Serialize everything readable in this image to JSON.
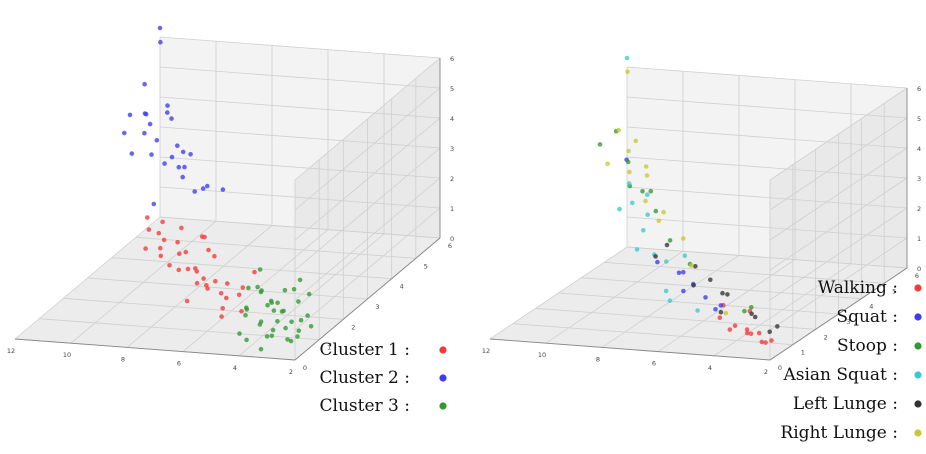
{
  "colors": {
    "red": "#f23a3a",
    "blue": "#3c3cf0",
    "green": "#2f9a2f",
    "cyan": "#3cc8d0",
    "dark": "#333333",
    "yellow": "#c8c832",
    "pane_left": "#f3f3f3",
    "pane_right": "#e9e9e9",
    "pane_floor": "#ececec",
    "grid": "#cfcfcf"
  },
  "chart_data": [
    {
      "type": "scatter",
      "projection": "3d",
      "xlim": [
        2,
        12
      ],
      "ylim": [
        0,
        6
      ],
      "zlim": [
        0,
        6
      ],
      "x_ticks": [
        "2",
        "4",
        "6",
        "8",
        "10",
        "12"
      ],
      "y_ticks": [
        "0",
        "1",
        "2",
        "3",
        "4",
        "5",
        "6"
      ],
      "z_ticks": [
        "0",
        "1",
        "2",
        "3",
        "4",
        "5",
        "6"
      ],
      "legend": [
        {
          "label": "Cluster 1 :",
          "color": "#f23a3a"
        },
        {
          "label": "Cluster 2 :",
          "color": "#3c3cf0"
        },
        {
          "label": "Cluster 3 :",
          "color": "#2f9a2f"
        }
      ],
      "series": [
        {
          "name": "Cluster 1 :",
          "color": "#f23a3a",
          "points": [
            [
              4.6,
              0.8,
              0.9
            ],
            [
              5.1,
              0.6,
              1.1
            ],
            [
              5.5,
              1.0,
              1.3
            ],
            [
              5.9,
              0.9,
              1.5
            ],
            [
              6.3,
              1.2,
              1.6
            ],
            [
              6.8,
              1.5,
              1.6
            ],
            [
              7.1,
              1.1,
              1.9
            ],
            [
              7.6,
              1.7,
              2.0
            ],
            [
              8.0,
              1.4,
              2.1
            ],
            [
              8.4,
              2.0,
              2.2
            ],
            [
              5.2,
              1.4,
              1.0
            ],
            [
              5.8,
              1.6,
              1.2
            ],
            [
              6.1,
              0.7,
              1.8
            ],
            [
              6.6,
              0.9,
              2.1
            ],
            [
              7.2,
              1.9,
              1.4
            ],
            [
              7.8,
              2.2,
              1.7
            ],
            [
              8.2,
              1.0,
              2.6
            ],
            [
              4.9,
              1.2,
              1.4
            ],
            [
              5.6,
              0.5,
              1.9
            ],
            [
              6.4,
              1.8,
              1.1
            ],
            [
              7.0,
              0.6,
              2.4
            ],
            [
              7.4,
              1.4,
              2.6
            ],
            [
              8.6,
              1.6,
              2.8
            ],
            [
              9.0,
              2.0,
              2.9
            ],
            [
              6.0,
              1.3,
              2.3
            ],
            [
              6.9,
              2.1,
              1.9
            ],
            [
              5.4,
              0.9,
              0.6
            ],
            [
              7.9,
              1.2,
              3.0
            ],
            [
              8.8,
              2.4,
              2.5
            ],
            [
              6.2,
              0.4,
              1.4
            ],
            [
              4.8,
              0.4,
              1.6
            ],
            [
              7.5,
              0.8,
              2.8
            ],
            [
              5.0,
              1.8,
              1.5
            ],
            [
              8.3,
              2.6,
              2.2
            ],
            [
              6.7,
              1.6,
              2.7
            ],
            [
              7.3,
              2.4,
              2.1
            ]
          ]
        },
        {
          "name": "Cluster 2 :",
          "color": "#3c3cf0",
          "points": [
            [
              8.0,
              2.8,
              3.3
            ],
            [
              8.6,
              3.0,
              3.6
            ],
            [
              9.0,
              3.3,
              3.7
            ],
            [
              9.5,
              3.6,
              3.8
            ],
            [
              9.8,
              3.1,
              4.2
            ],
            [
              10.3,
              3.9,
              4.1
            ],
            [
              10.8,
              4.2,
              4.4
            ],
            [
              11.2,
              4.5,
              4.5
            ],
            [
              11.5,
              4.8,
              4.3
            ],
            [
              8.3,
              3.5,
              2.9
            ],
            [
              8.9,
              2.6,
              4.3
            ],
            [
              9.4,
              4.0,
              3.2
            ],
            [
              10.0,
              4.4,
              3.6
            ],
            [
              10.6,
              2.9,
              5.0
            ],
            [
              11.0,
              3.6,
              5.1
            ],
            [
              11.6,
              4.9,
              5.2
            ],
            [
              9.2,
              2.5,
              3.0
            ],
            [
              10.4,
              3.5,
              4.6
            ],
            [
              11.9,
              5.9,
              5.9
            ],
            [
              12.0,
              6.0,
              6.3
            ],
            [
              8.5,
              3.9,
              2.7
            ],
            [
              9.7,
              4.6,
              3.2
            ],
            [
              10.9,
              5.2,
              3.9
            ],
            [
              11.3,
              5.5,
              4.1
            ],
            [
              9.1,
              3.6,
              4.0
            ],
            [
              10.1,
              4.1,
              4.9
            ],
            [
              8.2,
              4.2,
              2.4
            ],
            [
              9.9,
              2.4,
              4.7
            ]
          ]
        },
        {
          "name": "Cluster 3 :",
          "color": "#2f9a2f",
          "points": [
            [
              2.4,
              0.3,
              0.4
            ],
            [
              2.7,
              0.5,
              0.3
            ],
            [
              3.0,
              0.2,
              0.6
            ],
            [
              3.3,
              0.6,
              0.5
            ],
            [
              3.6,
              0.4,
              0.8
            ],
            [
              3.9,
              0.8,
              0.6
            ],
            [
              4.2,
              0.5,
              1.0
            ],
            [
              4.5,
              0.9,
              0.9
            ],
            [
              2.6,
              0.8,
              0.2
            ],
            [
              2.9,
              0.9,
              0.6
            ],
            [
              3.2,
              1.0,
              0.3
            ],
            [
              3.5,
              1.2,
              0.7
            ],
            [
              3.8,
              1.1,
              1.1
            ],
            [
              4.1,
              1.3,
              0.8
            ],
            [
              4.4,
              1.4,
              1.2
            ],
            [
              4.7,
              1.2,
              1.4
            ],
            [
              2.3,
              0.6,
              0.9
            ],
            [
              2.8,
              0.2,
              1.1
            ],
            [
              3.1,
              0.4,
              1.3
            ],
            [
              3.4,
              0.9,
              1.2
            ],
            [
              3.7,
              1.5,
              0.5
            ],
            [
              4.0,
              0.3,
              1.4
            ],
            [
              4.3,
              1.7,
              0.6
            ],
            [
              4.6,
              1.6,
              1.0
            ],
            [
              2.5,
              1.1,
              0.7
            ],
            [
              3.0,
              1.3,
              1.0
            ],
            [
              3.5,
              1.7,
              1.1
            ],
            [
              4.0,
              1.9,
              0.9
            ],
            [
              4.8,
              1.8,
              1.6
            ],
            [
              2.2,
              0.9,
              0.5
            ],
            [
              3.3,
              0.1,
              0.2
            ],
            [
              3.9,
              0.2,
              0.4
            ],
            [
              4.2,
              1.0,
              1.6
            ],
            [
              2.7,
              1.4,
              1.2
            ],
            [
              3.6,
              0.7,
              0.2
            ],
            [
              4.5,
              0.6,
              0.3
            ],
            [
              3.2,
              1.6,
              1.5
            ],
            [
              2.9,
              1.2,
              0.1
            ]
          ]
        }
      ]
    },
    {
      "type": "scatter",
      "projection": "3d",
      "xlim": [
        2,
        12
      ],
      "ylim": [
        0,
        6
      ],
      "zlim": [
        0,
        6
      ],
      "x_ticks": [
        "2",
        "4",
        "6",
        "8",
        "10",
        "12"
      ],
      "y_ticks": [
        "0",
        "1",
        "2",
        "3",
        "4",
        "5",
        "6"
      ],
      "z_ticks": [
        "0",
        "1",
        "2",
        "3",
        "4",
        "5",
        "6"
      ],
      "legend": [
        {
          "label": "Walking :",
          "color": "#f23a3a"
        },
        {
          "label": "Squat :",
          "color": "#3c3cf0"
        },
        {
          "label": "Stoop :",
          "color": "#2f9a2f"
        },
        {
          "label": "Asian Squat :",
          "color": "#3cc8d0"
        },
        {
          "label": "Left Lunge :",
          "color": "#333333"
        },
        {
          "label": "Right Lunge :",
          "color": "#c8c832"
        }
      ],
      "series": [
        {
          "name": "Walking :",
          "color": "#f23a3a",
          "points": [
            [
              2.4,
              0.3,
              0.4
            ],
            [
              2.7,
              0.5,
              0.3
            ],
            [
              3.0,
              0.4,
              0.6
            ],
            [
              3.3,
              0.6,
              0.5
            ],
            [
              3.6,
              0.2,
              0.8
            ],
            [
              3.9,
              0.8,
              0.6
            ],
            [
              4.2,
              0.5,
              1.0
            ],
            [
              2.6,
              0.8,
              0.2
            ],
            [
              3.2,
              1.0,
              0.3
            ],
            [
              3.7,
              1.2,
              0.9
            ],
            [
              4.4,
              0.9,
              1.2
            ],
            [
              2.9,
              0.1,
              0.9
            ]
          ]
        },
        {
          "name": "Squat :",
          "color": "#3c3cf0",
          "points": [
            [
              4.6,
              0.8,
              1.1
            ],
            [
              5.2,
              1.1,
              1.3
            ],
            [
              5.8,
              1.3,
              1.6
            ],
            [
              6.4,
              1.6,
              1.8
            ],
            [
              7.0,
              1.2,
              2.3
            ],
            [
              10.3,
              3.9,
              4.1
            ],
            [
              5.5,
              0.5,
              1.8
            ],
            [
              6.8,
              1.9,
              1.6
            ],
            [
              4.9,
              1.4,
              0.9
            ]
          ]
        },
        {
          "name": "Stoop :",
          "color": "#2f9a2f",
          "points": [
            [
              6.0,
              1.4,
              2.2
            ],
            [
              7.2,
              2.0,
              2.6
            ],
            [
              8.2,
              2.6,
              3.2
            ],
            [
              9.0,
              3.0,
              3.6
            ],
            [
              10.0,
              3.6,
              4.2
            ],
            [
              11.0,
              4.3,
              4.8
            ],
            [
              8.8,
              2.2,
              4.2
            ],
            [
              9.6,
              4.1,
              3.0
            ],
            [
              10.6,
              3.1,
              5.0
            ],
            [
              3.4,
              0.9,
              1.2
            ],
            [
              4.3,
              1.7,
              0.6
            ]
          ]
        },
        {
          "name": "Asian Squat :",
          "color": "#3cc8d0",
          "points": [
            [
              5.4,
              1.0,
              0.9
            ],
            [
              6.2,
              0.6,
              1.7
            ],
            [
              7.6,
              1.8,
              2.2
            ],
            [
              8.4,
              2.3,
              2.7
            ],
            [
              9.2,
              2.8,
              3.3
            ],
            [
              9.8,
              3.4,
              3.6
            ],
            [
              12.0,
              6.0,
              6.3
            ],
            [
              6.6,
              1.1,
              2.4
            ],
            [
              7.4,
              0.8,
              2.9
            ],
            [
              8.0,
              2.0,
              3.4
            ],
            [
              8.6,
              1.5,
              3.8
            ],
            [
              9.4,
              3.7,
              3.1
            ],
            [
              5.9,
              0.4,
              1.5
            ],
            [
              7.0,
              2.4,
              1.9
            ]
          ]
        },
        {
          "name": "Left Lunge :",
          "color": "#333333",
          "points": [
            [
              2.5,
              0.6,
              0.6
            ],
            [
              3.1,
              0.7,
              1.0
            ],
            [
              3.8,
              1.4,
              0.7
            ],
            [
              4.5,
              1.2,
              1.4
            ],
            [
              5.0,
              1.6,
              1.2
            ],
            [
              5.6,
              1.8,
              1.5
            ],
            [
              6.3,
              2.0,
              1.8
            ],
            [
              7.8,
              2.6,
              2.1
            ],
            [
              4.0,
              0.3,
              1.3
            ],
            [
              2.8,
              1.3,
              0.4
            ],
            [
              5.3,
              0.7,
              1.9
            ],
            [
              6.9,
              1.0,
              2.6
            ]
          ]
        },
        {
          "name": "Right Lunge :",
          "color": "#c8c832",
          "points": [
            [
              4.8,
              1.5,
              0.6
            ],
            [
              6.6,
              2.2,
              1.7
            ],
            [
              8.5,
              3.1,
              2.6
            ],
            [
              9.3,
              3.5,
              3.0
            ],
            [
              10.2,
              3.9,
              3.7
            ],
            [
              10.8,
              4.6,
              4.0
            ],
            [
              11.4,
              4.9,
              4.5
            ],
            [
              11.9,
              5.9,
              5.9
            ],
            [
              9.9,
              4.3,
              3.4
            ],
            [
              10.5,
              5.0,
              3.3
            ],
            [
              7.3,
              2.7,
              2.3
            ],
            [
              11.2,
              5.4,
              3.9
            ],
            [
              8.9,
              3.8,
              2.5
            ],
            [
              10.0,
              2.7,
              4.6
            ]
          ]
        }
      ]
    }
  ]
}
